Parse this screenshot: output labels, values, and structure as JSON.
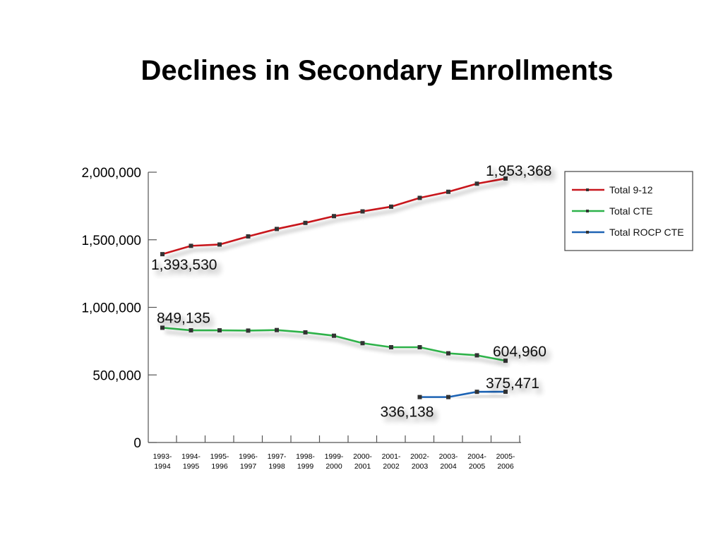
{
  "slide": {
    "title": "Declines in Secondary Enrollments"
  },
  "chart_data": {
    "type": "line",
    "title": "",
    "xlabel": "",
    "ylabel": "",
    "ylim": [
      0,
      2000000
    ],
    "y_ticks": [
      {
        "value": 0,
        "label": "0"
      },
      {
        "value": 500000,
        "label": "500,000"
      },
      {
        "value": 1000000,
        "label": "1,000,000"
      },
      {
        "value": 1500000,
        "label": "1,500,000"
      },
      {
        "value": 2000000,
        "label": "2,000,000"
      }
    ],
    "categories": [
      [
        "1993-",
        "1994"
      ],
      [
        "1994-",
        "1995"
      ],
      [
        "1995-",
        "1996"
      ],
      [
        "1996-",
        "1997"
      ],
      [
        "1997-",
        "1998"
      ],
      [
        "1998-",
        "1999"
      ],
      [
        "1999-",
        "2000"
      ],
      [
        "2000-",
        "2001"
      ],
      [
        "2001-",
        "2002"
      ],
      [
        "2002-",
        "2003"
      ],
      [
        "2003-",
        "2004"
      ],
      [
        "2004-",
        "2005"
      ],
      [
        "2005-",
        "2006"
      ]
    ],
    "grid": false,
    "legend_position": "right",
    "series": [
      {
        "name": "Total 9-12",
        "color": "#c8171d",
        "values": [
          1393530,
          1455000,
          1465000,
          1525000,
          1580000,
          1625000,
          1675000,
          1710000,
          1745000,
          1810000,
          1855000,
          1915000,
          1953368
        ]
      },
      {
        "name": "Total CTE",
        "color": "#2db24a",
        "values": [
          849135,
          830000,
          830000,
          828000,
          832000,
          815000,
          790000,
          735000,
          705000,
          705000,
          660000,
          645000,
          604960
        ]
      },
      {
        "name": "Total ROCP CTE",
        "color": "#1f63b4",
        "values": [
          null,
          null,
          null,
          null,
          null,
          null,
          null,
          null,
          null,
          336138,
          336138,
          375000,
          375471
        ]
      }
    ],
    "annotations": [
      {
        "text": "1,953,368",
        "series": 0,
        "index": 12
      },
      {
        "text": "1,393,530",
        "series": 0,
        "index": 0
      },
      {
        "text": "849,135",
        "series": 1,
        "index": 0
      },
      {
        "text": "604,960",
        "series": 1,
        "index": 12
      },
      {
        "text": "375,471",
        "series": 2,
        "index": 12
      },
      {
        "text": "336,138",
        "series": 2,
        "index": 9
      }
    ]
  }
}
